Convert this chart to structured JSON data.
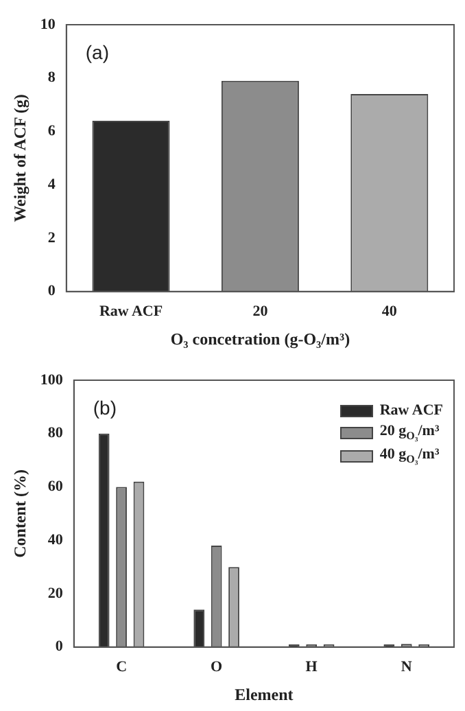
{
  "chart_data": [
    {
      "type": "bar",
      "categories": [
        "Raw ACF",
        "20",
        "40"
      ],
      "values": [
        6.4,
        7.9,
        7.4
      ],
      "colors": [
        "#2b2b2b",
        "#8c8c8c",
        "#ababab"
      ],
      "xlabel": "O₃ concetration (g-O₃/m³)",
      "ylabel": "Weight of ACF (g)",
      "ylim": [
        0,
        10
      ],
      "yticks": [
        0,
        2,
        4,
        6,
        8,
        10
      ],
      "annotations": [
        "(a)"
      ]
    },
    {
      "type": "bar",
      "categories": [
        "C",
        "O",
        "H",
        "N"
      ],
      "series": [
        {
          "name": "Raw ACF",
          "color": "#2b2b2b",
          "values": [
            80,
            14,
            1,
            1
          ]
        },
        {
          "name": "20 g$_{O₃}$/m³",
          "color": "#8c8c8c",
          "values": [
            60,
            38,
            1,
            1.2
          ]
        },
        {
          "name": "40 g$_{O₃}$/m³",
          "color": "#ababab",
          "values": [
            62,
            30,
            1,
            1
          ]
        }
      ],
      "xlabel": "Element",
      "ylabel": "Content (%)",
      "ylim": [
        0,
        100
      ],
      "yticks": [
        0,
        20,
        40,
        60,
        80,
        100
      ],
      "legend": "top right",
      "annotations": [
        "(b)"
      ]
    }
  ]
}
